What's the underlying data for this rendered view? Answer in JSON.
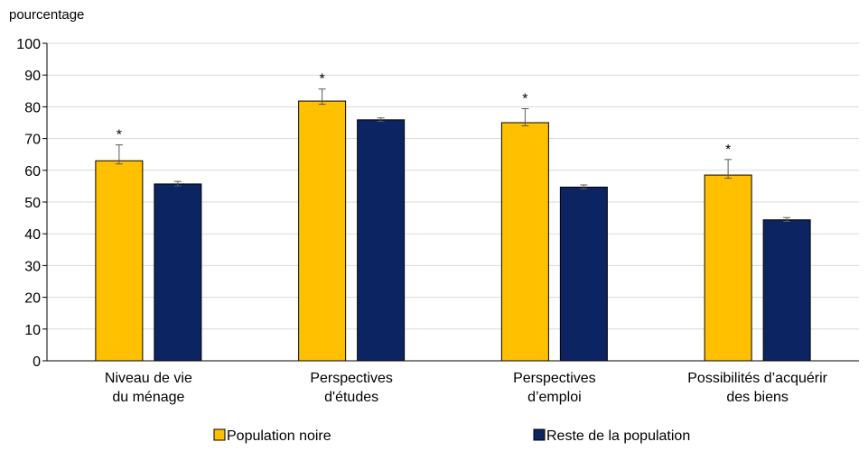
{
  "chart_data": {
    "type": "bar",
    "ylabel": "pourcentage",
    "categories": [
      [
        "Niveau de vie",
        "du ménage"
      ],
      [
        "Perspectives",
        "d'études"
      ],
      [
        "Perspectives",
        "d’emploi"
      ],
      [
        "Possibilités d’acquérir",
        "des biens"
      ]
    ],
    "series": [
      {
        "name": "Population noire",
        "color": "#FFC000",
        "values": [
          63,
          81.8,
          75,
          58.5
        ],
        "error_low": [
          62,
          80.8,
          74,
          57.5
        ],
        "error_high": [
          68,
          85.6,
          79.4,
          63.4
        ],
        "significance": [
          "*",
          "*",
          "*",
          "*"
        ]
      },
      {
        "name": "Reste de la population",
        "color": "#0C2461",
        "values": [
          55.7,
          75.9,
          54.7,
          44.4
        ],
        "error_low": [
          55.1,
          75.4,
          54.2,
          43.9
        ],
        "error_high": [
          56.5,
          76.5,
          55.4,
          45.1
        ],
        "significance": [
          "",
          "",
          "",
          ""
        ]
      }
    ],
    "ylim": [
      0,
      100
    ],
    "yticks": [
      0,
      10,
      20,
      30,
      40,
      50,
      60,
      70,
      80,
      90,
      100
    ],
    "grid": true,
    "legend_position": "bottom"
  }
}
